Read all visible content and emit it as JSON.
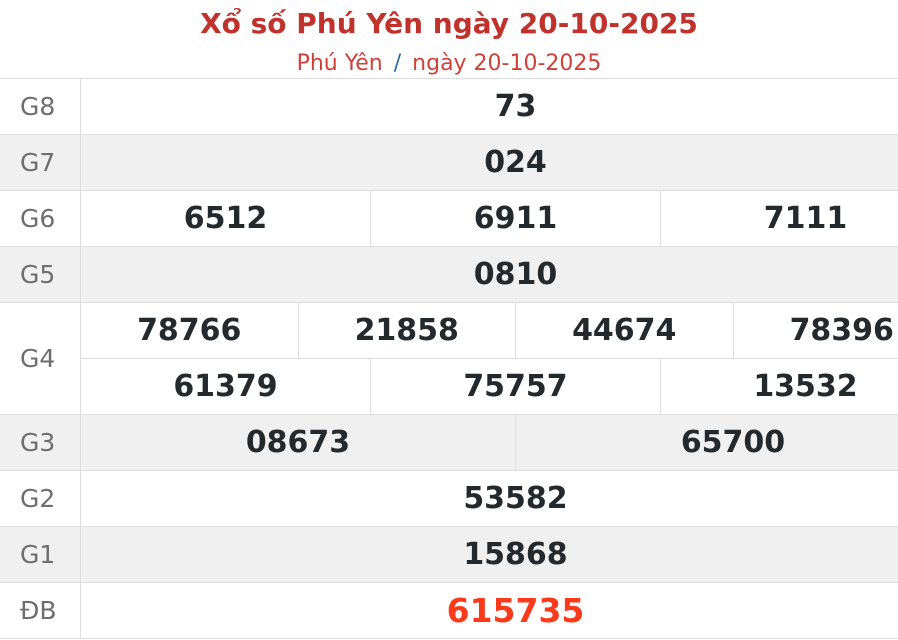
{
  "header": {
    "title": "Xổ số Phú Yên ngày 20-10-2025",
    "breadcrumb_region": "Phú Yên",
    "breadcrumb_separator": "/",
    "breadcrumb_date": "ngày 20-10-2025"
  },
  "colors": {
    "title_red": "#c0322c",
    "subtitle_red": "#cf423a",
    "separator_blue": "#2e6da4",
    "special_red": "#fb3a1b",
    "number_dark": "#24292e",
    "row_alt_bg": "#f0f0f0",
    "border": "#dddddd",
    "label_gray": "#6e6e6e"
  },
  "results": {
    "rows": [
      {
        "label": "G8",
        "values": [
          "73"
        ]
      },
      {
        "label": "G7",
        "values": [
          "024"
        ]
      },
      {
        "label": "G6",
        "values": [
          "6512",
          "6911",
          "7111"
        ]
      },
      {
        "label": "G5",
        "values": [
          "0810"
        ]
      },
      {
        "label": "G4",
        "values_row1": [
          "78766",
          "21858",
          "44674",
          "78396"
        ],
        "values_row2": [
          "61379",
          "75757",
          "13532"
        ]
      },
      {
        "label": "G3",
        "values": [
          "08673",
          "65700"
        ]
      },
      {
        "label": "G2",
        "values": [
          "53582"
        ]
      },
      {
        "label": "G1",
        "values": [
          "15868"
        ]
      },
      {
        "label": "ĐB",
        "values": [
          "615735"
        ]
      }
    ]
  }
}
